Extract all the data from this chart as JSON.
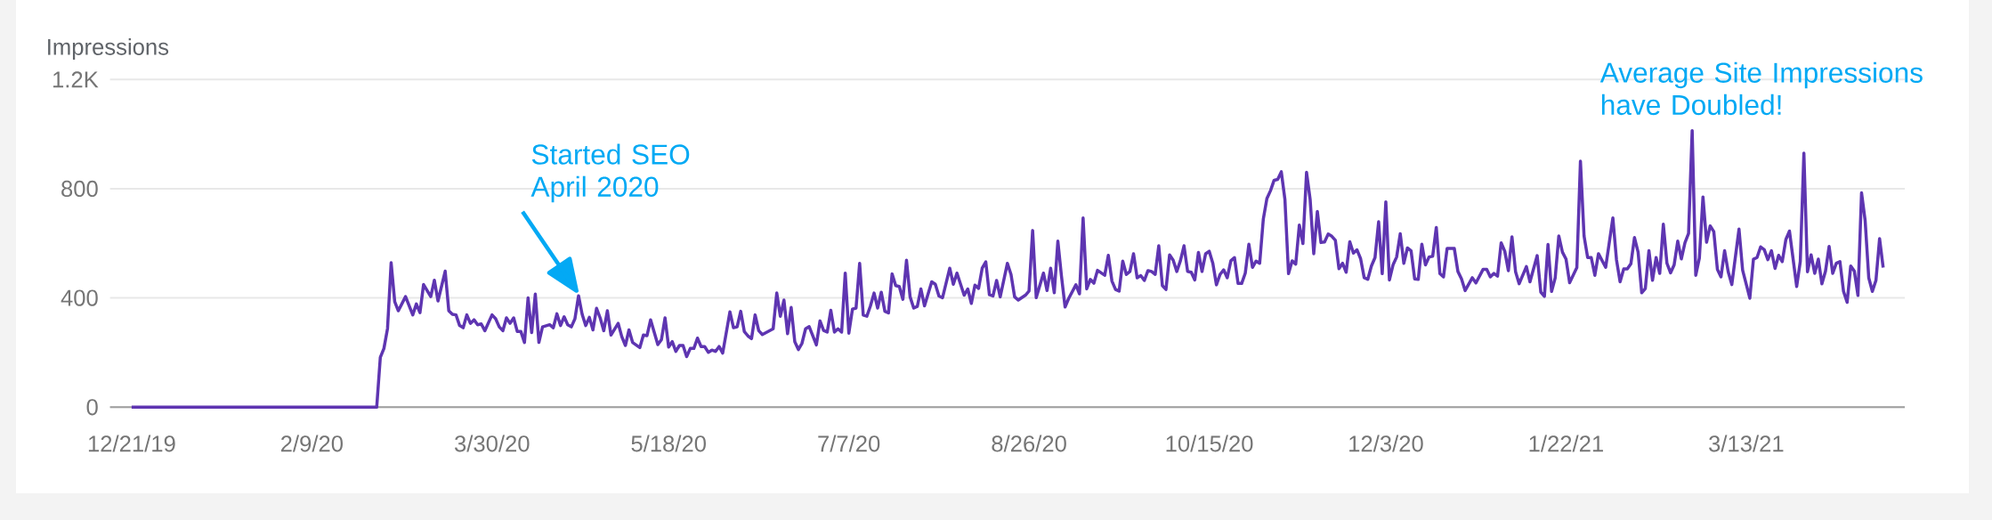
{
  "chart_data": {
    "type": "line",
    "ylabel": "Impressions",
    "annotations": [
      {
        "text": "Started SEO April 2020",
        "x": "2020-04-23",
        "y": 408
      },
      "Average Site Impressions have Doubled!"
    ],
    "xlim": [
      "2019-12-15",
      "2021-04-26"
    ],
    "xticks": [
      {
        "value": "2019-12-21",
        "label": "12/21/19"
      },
      {
        "value": "2020-02-09",
        "label": "2/9/20"
      },
      {
        "value": "2020-03-30",
        "label": "3/30/20"
      },
      {
        "value": "2020-05-18",
        "label": "5/18/20"
      },
      {
        "value": "2020-07-07",
        "label": "7/7/20"
      },
      {
        "value": "2020-08-26",
        "label": "8/26/20"
      },
      {
        "value": "2020-10-15",
        "label": "10/15/20"
      },
      {
        "value": "2020-12-03",
        "label": "12/3/20"
      },
      {
        "value": "2021-01-22",
        "label": "1/22/21"
      },
      {
        "value": "2021-03-13",
        "label": "3/13/21"
      }
    ],
    "ylim": [
      0,
      1200
    ],
    "yticks": [
      0,
      400,
      800,
      {
        "value": 1200,
        "label": "1.2K"
      }
    ],
    "grid": "y",
    "x": [
      "2019-12-21",
      "2020-02-27",
      "2020-02-28",
      "2020-02-29",
      "2020-03-01",
      "2020-03-02",
      "2020-03-03",
      "2020-03-04",
      "2020-03-06",
      "2020-03-08",
      "2020-03-09",
      "2020-03-10",
      "2020-03-11",
      "2020-03-13",
      "2020-03-14",
      "2020-03-15",
      "2020-03-17",
      "2020-03-18",
      "2020-03-19",
      "2020-03-20",
      "2020-03-21",
      "2020-03-22",
      "2020-03-23",
      "2020-03-24",
      "2020-03-25",
      "2020-03-26",
      "2020-03-27",
      "2020-03-28",
      "2020-03-30",
      "2020-03-31",
      "2020-04-01",
      "2020-04-02",
      "2020-04-03",
      "2020-04-04",
      "2020-04-05",
      "2020-04-06",
      "2020-04-07",
      "2020-04-08",
      "2020-04-09",
      "2020-04-10",
      "2020-04-11",
      "2020-04-12",
      "2020-04-13",
      "2020-04-15",
      "2020-04-16",
      "2020-04-17",
      "2020-04-18",
      "2020-04-19",
      "2020-04-20",
      "2020-04-21",
      "2020-04-22",
      "2020-04-23",
      "2020-04-24",
      "2020-04-25",
      "2020-04-26",
      "2020-04-27",
      "2020-04-28",
      "2020-04-29",
      "2020-04-30",
      "2020-05-01",
      "2020-05-02",
      "2020-05-04",
      "2020-05-05",
      "2020-05-06",
      "2020-05-07",
      "2020-05-08",
      "2020-05-10",
      "2020-05-11",
      "2020-05-12",
      "2020-05-13",
      "2020-05-15",
      "2020-05-16",
      "2020-05-17",
      "2020-05-18",
      "2020-05-19",
      "2020-05-20",
      "2020-05-21",
      "2020-05-22",
      "2020-05-23",
      "2020-05-24",
      "2020-05-25",
      "2020-05-26",
      "2020-05-27",
      "2020-05-28",
      "2020-05-29",
      "2020-05-30",
      "2020-05-31",
      "2020-06-01",
      "2020-06-02",
      "2020-06-04",
      "2020-06-05",
      "2020-06-06",
      "2020-06-07",
      "2020-06-08",
      "2020-06-09",
      "2020-06-10",
      "2020-06-11",
      "2020-06-12",
      "2020-06-13",
      "2020-06-16",
      "2020-06-17",
      "2020-06-18",
      "2020-06-19",
      "2020-06-20",
      "2020-06-21",
      "2020-06-22",
      "2020-06-23",
      "2020-06-24",
      "2020-06-25",
      "2020-06-26",
      "2020-06-28",
      "2020-06-29",
      "2020-06-30",
      "2020-07-01",
      "2020-07-02",
      "2020-07-03",
      "2020-07-04",
      "2020-07-05",
      "2020-07-06",
      "2020-07-07",
      "2020-07-08",
      "2020-07-09",
      "2020-07-10",
      "2020-07-11",
      "2020-07-12",
      "2020-07-13",
      "2020-07-14",
      "2020-07-15",
      "2020-07-16",
      "2020-07-17",
      "2020-07-18",
      "2020-07-19",
      "2020-07-20",
      "2020-07-21",
      "2020-07-22",
      "2020-07-23",
      "2020-07-24",
      "2020-07-25",
      "2020-07-26",
      "2020-07-27",
      "2020-07-28",
      "2020-07-29",
      "2020-07-30",
      "2020-07-31",
      "2020-08-01",
      "2020-08-02",
      "2020-08-04",
      "2020-08-05",
      "2020-08-06",
      "2020-08-08",
      "2020-08-09",
      "2020-08-10",
      "2020-08-11",
      "2020-08-12",
      "2020-08-13",
      "2020-08-14",
      "2020-08-15",
      "2020-08-16",
      "2020-08-17",
      "2020-08-18",
      "2020-08-20",
      "2020-08-21",
      "2020-08-22",
      "2020-08-23",
      "2020-08-25",
      "2020-08-26",
      "2020-08-27",
      "2020-08-28",
      "2020-08-30",
      "2020-08-31",
      "2020-09-01",
      "2020-09-02",
      "2020-09-03",
      "2020-09-04",
      "2020-09-05",
      "2020-09-06",
      "2020-09-08",
      "2020-09-09",
      "2020-09-10",
      "2020-09-11",
      "2020-09-12",
      "2020-09-13",
      "2020-09-14",
      "2020-09-16",
      "2020-09-17",
      "2020-09-18",
      "2020-09-19",
      "2020-09-20",
      "2020-09-21",
      "2020-09-22",
      "2020-09-23",
      "2020-09-24",
      "2020-09-25",
      "2020-09-26",
      "2020-09-27",
      "2020-09-28",
      "2020-09-29",
      "2020-09-30",
      "2020-10-01",
      "2020-10-02",
      "2020-10-03",
      "2020-10-04",
      "2020-10-05",
      "2020-10-06",
      "2020-10-07",
      "2020-10-08",
      "2020-10-09",
      "2020-10-10",
      "2020-10-11",
      "2020-10-12",
      "2020-10-13",
      "2020-10-14",
      "2020-10-15",
      "2020-10-16",
      "2020-10-17",
      "2020-10-18",
      "2020-10-19",
      "2020-10-20",
      "2020-10-21",
      "2020-10-22",
      "2020-10-23",
      "2020-10-24",
      "2020-10-25",
      "2020-10-26",
      "2020-10-27",
      "2020-10-28",
      "2020-10-29",
      "2020-10-30",
      "2020-10-31",
      "2020-11-01",
      "2020-11-02",
      "2020-11-03",
      "2020-11-04",
      "2020-11-05",
      "2020-11-06",
      "2020-11-07",
      "2020-11-08",
      "2020-11-09",
      "2020-11-10",
      "2020-11-11",
      "2020-11-12",
      "2020-11-13",
      "2020-11-14",
      "2020-11-15",
      "2020-11-16",
      "2020-11-17",
      "2020-11-18",
      "2020-11-19",
      "2020-11-20",
      "2020-11-21",
      "2020-11-22",
      "2020-11-23",
      "2020-11-24",
      "2020-11-25",
      "2020-11-26",
      "2020-11-27",
      "2020-11-28",
      "2020-11-29",
      "2020-11-30",
      "2020-12-01",
      "2020-12-02",
      "2020-12-03",
      "2020-12-04",
      "2020-12-05",
      "2020-12-06",
      "2020-12-07",
      "2020-12-08",
      "2020-12-09",
      "2020-12-10",
      "2020-12-11",
      "2020-12-12",
      "2020-12-13",
      "2020-12-14",
      "2020-12-15",
      "2020-12-16",
      "2020-12-17",
      "2020-12-18",
      "2020-12-19",
      "2020-12-20",
      "2020-12-22",
      "2020-12-23",
      "2020-12-24",
      "2020-12-25",
      "2020-12-27",
      "2020-12-28",
      "2020-12-30",
      "2020-12-31",
      "2021-01-01",
      "2021-01-02",
      "2021-01-03",
      "2021-01-04",
      "2021-01-05",
      "2021-01-06",
      "2021-01-07",
      "2021-01-08",
      "2021-01-09",
      "2021-01-11",
      "2021-01-12",
      "2021-01-14",
      "2021-01-15",
      "2021-01-16",
      "2021-01-17",
      "2021-01-18",
      "2021-01-19",
      "2021-01-20",
      "2021-01-21",
      "2021-01-22",
      "2021-01-23",
      "2021-01-25",
      "2021-01-26",
      "2021-01-27",
      "2021-01-28",
      "2021-01-29",
      "2021-01-30",
      "2021-01-31",
      "2021-02-02",
      "2021-02-04",
      "2021-02-05",
      "2021-02-06",
      "2021-02-07",
      "2021-02-08",
      "2021-02-09",
      "2021-02-10",
      "2021-02-11",
      "2021-02-12",
      "2021-02-13",
      "2021-02-14",
      "2021-02-15",
      "2021-02-16",
      "2021-02-17",
      "2021-02-18",
      "2021-02-19",
      "2021-02-20",
      "2021-02-21",
      "2021-02-22",
      "2021-02-23",
      "2021-02-24",
      "2021-02-25",
      "2021-02-26",
      "2021-02-27",
      "2021-02-28",
      "2021-03-01",
      "2021-03-02",
      "2021-03-03",
      "2021-03-04",
      "2021-03-05",
      "2021-03-06",
      "2021-03-07",
      "2021-03-08",
      "2021-03-09",
      "2021-03-11",
      "2021-03-12",
      "2021-03-14",
      "2021-03-15",
      "2021-03-16",
      "2021-03-17",
      "2021-03-18",
      "2021-03-19",
      "2021-03-20",
      "2021-03-21",
      "2021-03-22",
      "2021-03-23",
      "2021-03-24",
      "2021-03-25",
      "2021-03-27",
      "2021-03-28",
      "2021-03-29",
      "2021-03-30",
      "2021-03-31",
      "2021-04-01",
      "2021-04-02",
      "2021-04-03",
      "2021-04-04",
      "2021-04-05",
      "2021-04-06",
      "2021-04-07",
      "2021-04-08",
      "2021-04-09",
      "2021-04-10",
      "2021-04-11",
      "2021-04-12",
      "2021-04-13",
      "2021-04-14",
      "2021-04-15",
      "2021-04-16",
      "2021-04-17",
      "2021-04-18",
      "2021-04-19",
      "2021-04-20"
    ],
    "series": [
      {
        "color": "#5e35b1",
        "values": [
          0,
          0,
          182,
          215,
          288,
          529,
          386,
          353,
          405,
          338,
          378,
          346,
          449,
          405,
          465,
          389,
          498,
          353,
          340,
          338,
          299,
          291,
          338,
          307,
          320,
          302,
          305,
          280,
          338,
          324,
          294,
          280,
          327,
          307,
          327,
          277,
          277,
          237,
          400,
          273,
          414,
          237,
          294,
          302,
          291,
          342,
          299,
          331,
          302,
          294,
          324,
          408,
          340,
          299,
          329,
          283,
          362,
          327,
          280,
          353,
          264,
          307,
          258,
          226,
          283,
          237,
          218,
          264,
          262,
          320,
          229,
          247,
          327,
          220,
          240,
          204,
          226,
          226,
          185,
          215,
          215,
          253,
          222,
          222,
          201,
          209,
          204,
          222,
          198,
          349,
          291,
          294,
          351,
          277,
          261,
          251,
          338,
          280,
          266,
          287,
          418,
          333,
          392,
          269,
          365,
          240,
          211,
          234,
          287,
          295,
          228,
          316,
          281,
          275,
          355,
          275,
          287,
          275,
          491,
          271,
          359,
          363,
          527,
          337,
          333,
          371,
          418,
          363,
          421,
          351,
          345,
          488,
          445,
          442,
          395,
          538,
          404,
          363,
          369,
          433,
          371,
          415,
          459,
          450,
          407,
          401,
          509,
          450,
          491,
          410,
          433,
          380,
          447,
          435,
          509,
          532,
          412,
          407,
          464,
          404,
          527,
          486,
          404,
          392,
          410,
          425,
          647,
          401,
          491,
          427,
          509,
          419,
          608,
          480,
          367,
          398,
          448,
          415,
          693,
          433,
          468,
          454,
          501,
          483,
          556,
          462,
          431,
          425,
          535,
          486,
          497,
          562,
          474,
          482,
          464,
          500,
          497,
          486,
          591,
          445,
          431,
          558,
          538,
          497,
          536,
          591,
          497,
          494,
          466,
          567,
          497,
          562,
          571,
          527,
          448,
          486,
          503,
          474,
          536,
          548,
          453,
          453,
          491,
          597,
          512,
          535,
          527,
          688,
          764,
          793,
          831,
          834,
          862,
          761,
          489,
          536,
          524,
          667,
          599,
          860,
          761,
          562,
          717,
          603,
          605,
          634,
          626,
          611,
          507,
          527,
          494,
          606,
          564,
          576,
          544,
          474,
          468,
          517,
          548,
          679,
          489,
          752,
          466,
          521,
          550,
          635,
          527,
          583,
          573,
          470,
          468,
          597,
          521,
          550,
          553,
          658,
          489,
          477,
          581,
          581,
          497,
          470,
          427,
          474,
          455,
          505,
          505,
          477,
          490,
          480,
          602,
          571,
          500,
          624,
          496,
          452,
          515,
          459,
          555,
          421,
          406,
          596,
          424,
          474,
          627,
          568,
          542,
          456,
          511,
          901,
          627,
          548,
          548,
          483,
          562,
          512,
          693,
          540,
          459,
          506,
          506,
          525,
          621,
          568,
          419,
          434,
          573,
          465,
          548,
          490,
          670,
          527,
          492,
          521,
          608,
          543,
          602,
          636,
          1013,
          483,
          546,
          770,
          604,
          664,
          643,
          505,
          477,
          573,
          496,
          449,
          652,
          502,
          399,
          542,
          548,
          587,
          577,
          540,
          573,
          508,
          556,
          533,
          614,
          645,
          442,
          533,
          930,
          496,
          558,
          490,
          542,
          452,
          498,
          589,
          490,
          527,
          533,
          424,
          384,
          517,
          498,
          409,
          785,
          683,
          474,
          424,
          465,
          617,
          511
        ]
      }
    ]
  }
}
